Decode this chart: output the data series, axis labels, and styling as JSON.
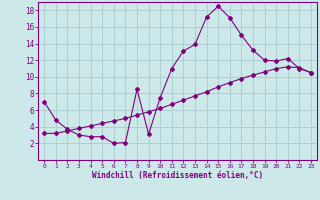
{
  "xlabel": "Windchill (Refroidissement éolien,°C)",
  "background_color": "#cce8e8",
  "grid_color": "#aacccc",
  "line_color": "#800080",
  "spine_color": "#800080",
  "xlim": [
    -0.5,
    23.5
  ],
  "ylim": [
    0,
    19
  ],
  "yticks": [
    2,
    4,
    6,
    8,
    10,
    12,
    14,
    16,
    18
  ],
  "xticks": [
    0,
    1,
    2,
    3,
    4,
    5,
    6,
    7,
    8,
    9,
    10,
    11,
    12,
    13,
    14,
    15,
    16,
    17,
    18,
    19,
    20,
    21,
    22,
    23
  ],
  "line1_x": [
    0,
    1,
    2,
    3,
    4,
    5,
    6,
    7,
    8,
    9,
    10,
    11,
    12,
    13,
    14,
    15,
    16,
    17,
    18,
    19,
    20,
    21,
    22,
    23
  ],
  "line1_y": [
    7.0,
    4.8,
    3.7,
    3.0,
    2.8,
    2.8,
    2.0,
    2.1,
    8.5,
    3.1,
    7.5,
    11.0,
    13.1,
    13.9,
    17.2,
    18.5,
    17.1,
    15.0,
    13.2,
    12.0,
    11.9,
    12.2,
    11.0,
    10.5
  ],
  "line2_x": [
    0,
    1,
    2,
    3,
    4,
    5,
    6,
    7,
    8,
    9,
    10,
    11,
    12,
    13,
    14,
    15,
    16,
    17,
    18,
    19,
    20,
    21,
    22,
    23
  ],
  "line2_y": [
    3.2,
    3.2,
    3.5,
    3.8,
    4.1,
    4.4,
    4.7,
    5.0,
    5.4,
    5.8,
    6.2,
    6.7,
    7.2,
    7.7,
    8.2,
    8.8,
    9.3,
    9.8,
    10.2,
    10.6,
    11.0,
    11.2,
    11.1,
    10.5
  ]
}
